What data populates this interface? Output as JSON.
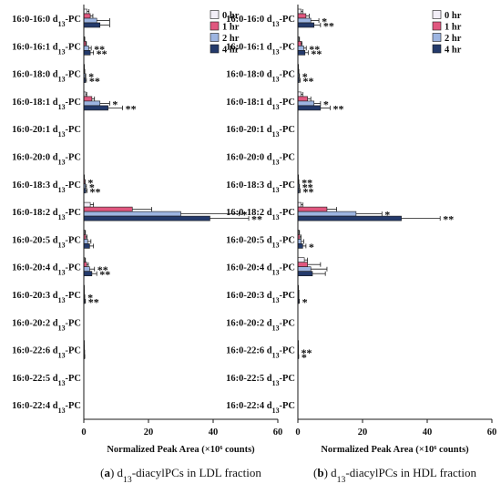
{
  "colors": {
    "0 hr": "#f2eef7",
    "1 hr": "#e0577f",
    "2 hr": "#9db5e1",
    "4 hr": "#243a6b"
  },
  "chart_data": [
    {
      "type": "bar",
      "orientation": "horizontal",
      "caption_panel": "(a)",
      "caption_text": "d13-diacylPCs in LDL fraction",
      "xlabel": "Normalized Peak Area (×10⁶ counts)",
      "xlim": [
        0,
        60
      ],
      "xticks": [
        0,
        20,
        40,
        60
      ],
      "legend_position": "top-right",
      "categories": [
        "16:0-16:0 d13-PC",
        "16:0-16:1 d13-PC",
        "16:0-18:0 d13-PC",
        "16:0-18:1 d13-PC",
        "16:0-20:1 d13-PC",
        "16:0-20:0 d13-PC",
        "16:0-18:3 d13-PC",
        "16:0-18:2 d13-PC",
        "16:0-20:5 d13-PC",
        "16:0-20:4 d13-PC",
        "16:0-20:3 d13-PC",
        "16:0-20:2 d13-PC",
        "16:0-22:6 d13-PC",
        "16:0-22:5 d13-PC",
        "16:0-22:4 d13-PC"
      ],
      "series": [
        {
          "name": "0 hr",
          "values": [
            1.0,
            0.2,
            0.1,
            0.6,
            0,
            0,
            0.1,
            2.0,
            0.3,
            0.3,
            0.05,
            0,
            0.05,
            0,
            0
          ],
          "errors": [
            0.6,
            0.1,
            0.05,
            0.3,
            0,
            0,
            0.05,
            1.0,
            0.2,
            0.2,
            0.03,
            0,
            0.03,
            0,
            0
          ]
        },
        {
          "name": "1 hr",
          "values": [
            2.0,
            0.6,
            0.2,
            2.5,
            0,
            0,
            0.3,
            15.0,
            0.6,
            0.9,
            0.1,
            0,
            0.1,
            0,
            0
          ],
          "errors": [
            0.8,
            0.2,
            0.1,
            0.8,
            0,
            0,
            0.1,
            6.0,
            0.4,
            0.5,
            0.05,
            0,
            0.05,
            0,
            0
          ]
        },
        {
          "name": "2 hr",
          "values": [
            4.0,
            1.5,
            0.4,
            5.0,
            0,
            0,
            0.5,
            30.0,
            1.2,
            1.8,
            0.2,
            0,
            0.15,
            0,
            0
          ],
          "errors": [
            4.0,
            0.8,
            0.2,
            3.0,
            0,
            0,
            0.3,
            18.0,
            1.0,
            1.5,
            0.1,
            0,
            0.1,
            0,
            0
          ]
        },
        {
          "name": "4 hr",
          "values": [
            5.0,
            2.0,
            0.5,
            7.5,
            0,
            0,
            0.6,
            39.0,
            1.8,
            2.5,
            0.3,
            0,
            0.2,
            0,
            0
          ],
          "errors": [
            3.0,
            1.0,
            0.3,
            4.5,
            0,
            0,
            0.4,
            12.0,
            1.2,
            1.5,
            0.2,
            0,
            0.1,
            0,
            0
          ]
        }
      ],
      "annotations": [
        {
          "category": 1,
          "series": 2,
          "text": "**"
        },
        {
          "category": 1,
          "series": 3,
          "text": "**"
        },
        {
          "category": 2,
          "series": 2,
          "text": "*"
        },
        {
          "category": 2,
          "series": 3,
          "text": "**"
        },
        {
          "category": 3,
          "series": 2,
          "text": "*"
        },
        {
          "category": 3,
          "series": 3,
          "text": "**"
        },
        {
          "category": 6,
          "series": 1,
          "text": "*"
        },
        {
          "category": 6,
          "series": 2,
          "text": "*"
        },
        {
          "category": 6,
          "series": 3,
          "text": "**"
        },
        {
          "category": 7,
          "series": 2,
          "text": "*"
        },
        {
          "category": 7,
          "series": 3,
          "text": "**"
        },
        {
          "category": 9,
          "series": 2,
          "text": "**"
        },
        {
          "category": 9,
          "series": 3,
          "text": "**"
        },
        {
          "category": 10,
          "series": 2,
          "text": "*"
        },
        {
          "category": 10,
          "series": 3,
          "text": "**"
        }
      ]
    },
    {
      "type": "bar",
      "orientation": "horizontal",
      "caption_panel": "(b)",
      "caption_text": "d13-diacylPCs in HDL fraction",
      "xlabel": "Normalized Peak Area (×10⁶ counts)",
      "xlim": [
        0,
        60
      ],
      "xticks": [
        0,
        20,
        40,
        60
      ],
      "legend_position": "top-right",
      "categories": [
        "16:0-16:0 d13-PC",
        "16:0-16:1 d13-PC",
        "16:0-18:0 d13-PC",
        "16:0-18:1 d13-PC",
        "16:0-20:1 d13-PC",
        "16:0-20:0 d13-PC",
        "16:0-18:3 d13-PC",
        "16:0-18:2 d13-PC",
        "16:0-20:5 d13-PC",
        "16:0-20:4 d13-PC",
        "16:0-20:3 d13-PC",
        "16:0-20:2 d13-PC",
        "16:0-22:6 d13-PC",
        "16:0-22:5 d13-PC",
        "16:0-22:4 d13-PC"
      ],
      "series": [
        {
          "name": "0 hr",
          "values": [
            1.0,
            0.3,
            0.1,
            1.0,
            0,
            0,
            0.1,
            1.0,
            0.3,
            2.0,
            0.1,
            0,
            0.05,
            0,
            0
          ],
          "errors": [
            0.5,
            0.2,
            0.05,
            0.5,
            0,
            0,
            0.05,
            0.5,
            0.2,
            1.0,
            0.05,
            0,
            0.03,
            0,
            0
          ]
        },
        {
          "name": "1 hr",
          "values": [
            2.5,
            1.0,
            0.2,
            3.0,
            0,
            0,
            0.2,
            9.0,
            0.6,
            3.0,
            0.2,
            0,
            0.1,
            0,
            0
          ],
          "errors": [
            1.0,
            0.3,
            0.1,
            1.0,
            0,
            0,
            0.1,
            3.0,
            0.4,
            4.0,
            0.1,
            0,
            0.05,
            0,
            0
          ]
        },
        {
          "name": "2 hr",
          "values": [
            4.0,
            1.8,
            0.3,
            5.0,
            0,
            0,
            0.3,
            18.0,
            1.0,
            4.0,
            0.2,
            0,
            0.1,
            0,
            0
          ],
          "errors": [
            2.5,
            0.8,
            0.2,
            2.0,
            0,
            0,
            0.2,
            8.0,
            0.8,
            5.0,
            0.1,
            0,
            0.05,
            0,
            0
          ]
        },
        {
          "name": "4 hr",
          "values": [
            5.0,
            2.2,
            0.4,
            7.0,
            0,
            0,
            0.4,
            32.0,
            1.5,
            4.5,
            0.3,
            0,
            0.15,
            0,
            0
          ],
          "errors": [
            2.0,
            1.0,
            0.3,
            3.0,
            0,
            0,
            0.3,
            12.0,
            1.0,
            4.0,
            0.15,
            0,
            0.1,
            0,
            0
          ]
        }
      ],
      "annotations": [
        {
          "category": 0,
          "series": 2,
          "text": "*"
        },
        {
          "category": 0,
          "series": 3,
          "text": "**"
        },
        {
          "category": 1,
          "series": 2,
          "text": "**"
        },
        {
          "category": 1,
          "series": 3,
          "text": "**"
        },
        {
          "category": 2,
          "series": 2,
          "text": "*"
        },
        {
          "category": 2,
          "series": 3,
          "text": "**"
        },
        {
          "category": 3,
          "series": 2,
          "text": "*"
        },
        {
          "category": 3,
          "series": 3,
          "text": "**"
        },
        {
          "category": 6,
          "series": 1,
          "text": "**"
        },
        {
          "category": 6,
          "series": 2,
          "text": "**"
        },
        {
          "category": 6,
          "series": 3,
          "text": "**"
        },
        {
          "category": 7,
          "series": 2,
          "text": "*"
        },
        {
          "category": 7,
          "series": 3,
          "text": "**"
        },
        {
          "category": 8,
          "series": 3,
          "text": "*"
        },
        {
          "category": 10,
          "series": 3,
          "text": "*"
        },
        {
          "category": 12,
          "series": 2,
          "text": "**"
        },
        {
          "category": 12,
          "series": 3,
          "text": "*"
        }
      ]
    }
  ]
}
